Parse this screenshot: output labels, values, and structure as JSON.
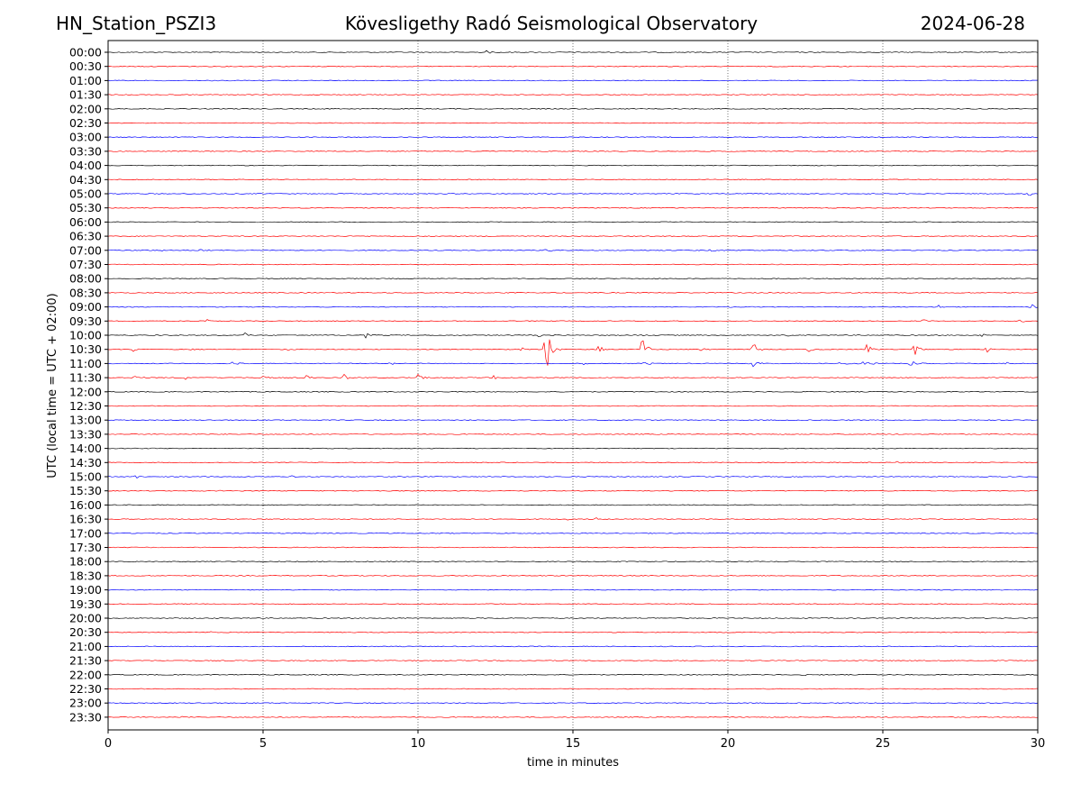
{
  "header": {
    "station": "HN_Station_PSZI3",
    "title": "Kövesligethy Radó Seismological Observatory",
    "date": "2024-06-28"
  },
  "colors": {
    "blue": "#0000ff",
    "red": "#ff0000",
    "grid": "#555555"
  },
  "chart_data": {
    "type": "line",
    "xlabel": "time in minutes",
    "ylabel": "UTC (local time = UTC + 02:00)",
    "xlim": [
      0,
      30
    ],
    "x_ticks": [
      0,
      5,
      10,
      15,
      20,
      25,
      30
    ],
    "vertical_grid": [
      5,
      10,
      15,
      20,
      25
    ],
    "row_labels": [
      "00:00",
      "00:30",
      "01:00",
      "01:30",
      "02:00",
      "02:30",
      "03:00",
      "03:30",
      "04:00",
      "04:30",
      "05:00",
      "05:30",
      "06:00",
      "06:30",
      "07:00",
      "07:30",
      "08:00",
      "08:30",
      "09:00",
      "09:30",
      "10:00",
      "10:30",
      "11:00",
      "11:30",
      "12:00",
      "12:30",
      "13:00",
      "13:30",
      "14:00",
      "14:30",
      "15:00",
      "15:30",
      "16:00",
      "16:30",
      "17:00",
      "17:30",
      "18:00",
      "18:30",
      "19:00",
      "19:30",
      "20:00",
      "20:30",
      "21:00",
      "21:30",
      "22:00",
      "22:30",
      "23:00",
      "23:30"
    ],
    "color_cycle": [
      "#000000",
      "#ff0000",
      "#0000ff",
      "#ff0000"
    ],
    "events": [
      {
        "row": 0,
        "t": 12.2,
        "amp": 2
      },
      {
        "row": 2,
        "t": 3.3,
        "amp": 1.5
      },
      {
        "row": 5,
        "t": 20.7,
        "amp": 1.5
      },
      {
        "row": 10,
        "t": 29.7,
        "amp": 3
      },
      {
        "row": 14,
        "t": 1.7,
        "amp": 2
      },
      {
        "row": 14,
        "t": 3.0,
        "amp": 3
      },
      {
        "row": 14,
        "t": 14.1,
        "amp": 6
      },
      {
        "row": 14,
        "t": 19.4,
        "amp": 2
      },
      {
        "row": 18,
        "t": 20.1,
        "amp": 2
      },
      {
        "row": 18,
        "t": 26.8,
        "amp": 3
      },
      {
        "row": 18,
        "t": 29.8,
        "amp": 4
      },
      {
        "row": 19,
        "t": 3.2,
        "amp": 2
      },
      {
        "row": 19,
        "t": 26.3,
        "amp": 2
      },
      {
        "row": 19,
        "t": 29.4,
        "amp": 3
      },
      {
        "row": 20,
        "t": 1.4,
        "amp": 3
      },
      {
        "row": 20,
        "t": 4.4,
        "amp": 3
      },
      {
        "row": 20,
        "t": 8.3,
        "amp": 5
      },
      {
        "row": 20,
        "t": 13.9,
        "amp": 2
      },
      {
        "row": 20,
        "t": 17.3,
        "amp": 2
      },
      {
        "row": 20,
        "t": 21.9,
        "amp": 2
      },
      {
        "row": 20,
        "t": 28.2,
        "amp": 2
      },
      {
        "row": 21,
        "t": 0.8,
        "amp": 3
      },
      {
        "row": 21,
        "t": 2.7,
        "amp": 2
      },
      {
        "row": 21,
        "t": 5.8,
        "amp": 2
      },
      {
        "row": 21,
        "t": 13.3,
        "amp": 3
      },
      {
        "row": 21,
        "t": 14.1,
        "amp": 42
      },
      {
        "row": 21,
        "t": 15.8,
        "amp": 6
      },
      {
        "row": 21,
        "t": 17.2,
        "amp": 18
      },
      {
        "row": 21,
        "t": 19.1,
        "amp": 5
      },
      {
        "row": 21,
        "t": 20.8,
        "amp": 10
      },
      {
        "row": 21,
        "t": 22.6,
        "amp": 5
      },
      {
        "row": 21,
        "t": 24.5,
        "amp": 12
      },
      {
        "row": 21,
        "t": 26.0,
        "amp": 18
      },
      {
        "row": 21,
        "t": 28.3,
        "amp": 6
      },
      {
        "row": 22,
        "t": 4.0,
        "amp": 4
      },
      {
        "row": 22,
        "t": 9.1,
        "amp": 3
      },
      {
        "row": 22,
        "t": 15.3,
        "amp": 3
      },
      {
        "row": 22,
        "t": 17.3,
        "amp": 4
      },
      {
        "row": 22,
        "t": 20.8,
        "amp": 4
      },
      {
        "row": 22,
        "t": 23.6,
        "amp": 4
      },
      {
        "row": 22,
        "t": 24.4,
        "amp": 8
      },
      {
        "row": 22,
        "t": 25.9,
        "amp": 8
      },
      {
        "row": 22,
        "t": 28.9,
        "amp": 4
      },
      {
        "row": 23,
        "t": 0.8,
        "amp": 5
      },
      {
        "row": 23,
        "t": 2.5,
        "amp": 3
      },
      {
        "row": 23,
        "t": 4.9,
        "amp": 6
      },
      {
        "row": 23,
        "t": 6.4,
        "amp": 3
      },
      {
        "row": 23,
        "t": 7.6,
        "amp": 6
      },
      {
        "row": 23,
        "t": 10.0,
        "amp": 9
      },
      {
        "row": 23,
        "t": 12.4,
        "amp": 3
      },
      {
        "row": 27,
        "t": 7.9,
        "amp": 1.5
      },
      {
        "row": 29,
        "t": 25.4,
        "amp": 2
      },
      {
        "row": 30,
        "t": 0.9,
        "amp": 2
      },
      {
        "row": 30,
        "t": 5.9,
        "amp": 2
      },
      {
        "row": 31,
        "t": 3.6,
        "amp": 2
      },
      {
        "row": 33,
        "t": 14.8,
        "amp": 1.5
      },
      {
        "row": 33,
        "t": 15.7,
        "amp": 2
      },
      {
        "row": 33,
        "t": 26.2,
        "amp": 1.5
      },
      {
        "row": 35,
        "t": 7.3,
        "amp": 1.5
      },
      {
        "row": 36,
        "t": 11.6,
        "amp": 1.5
      },
      {
        "row": 41,
        "t": 3.2,
        "amp": 1.5
      },
      {
        "row": 44,
        "t": 22.4,
        "amp": 1.5
      },
      {
        "row": 47,
        "t": 2.4,
        "amp": 1.5
      }
    ]
  }
}
